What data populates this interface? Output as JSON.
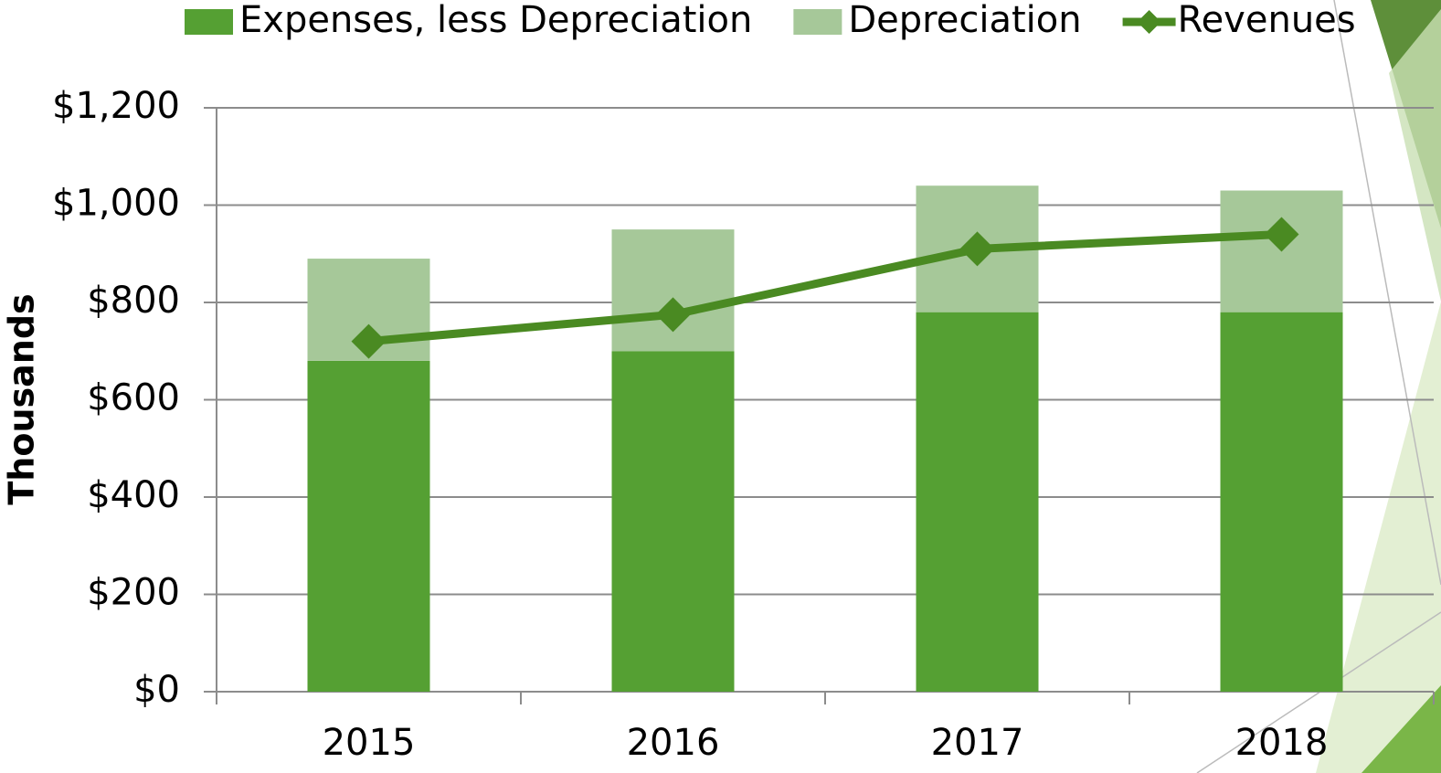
{
  "chart_data": {
    "type": "stacked-bar-line",
    "y_label": "Thousands",
    "categories": [
      "2015",
      "2016",
      "2017",
      "2018"
    ],
    "series": [
      {
        "name": "Expenses, less Depreciation",
        "type": "bar",
        "color": "#55a033",
        "values": [
          680,
          700,
          780,
          780
        ]
      },
      {
        "name": "Depreciation",
        "type": "bar",
        "color": "#a6c899",
        "values": [
          210,
          250,
          260,
          250
        ]
      },
      {
        "name": "Revenues",
        "type": "line",
        "color": "#4a8a22",
        "values": [
          720,
          775,
          910,
          940
        ]
      }
    ],
    "ylim": [
      0,
      1200
    ],
    "yticks": [
      {
        "value": 0,
        "label": "$0"
      },
      {
        "value": 200,
        "label": "$200"
      },
      {
        "value": 400,
        "label": "$400"
      },
      {
        "value": 600,
        "label": "$600"
      },
      {
        "value": 800,
        "label": "$800"
      },
      {
        "value": 1000,
        "label": "$1,000"
      },
      {
        "value": 1200,
        "label": "$1,200"
      }
    ],
    "grid": true,
    "legend": "top"
  }
}
